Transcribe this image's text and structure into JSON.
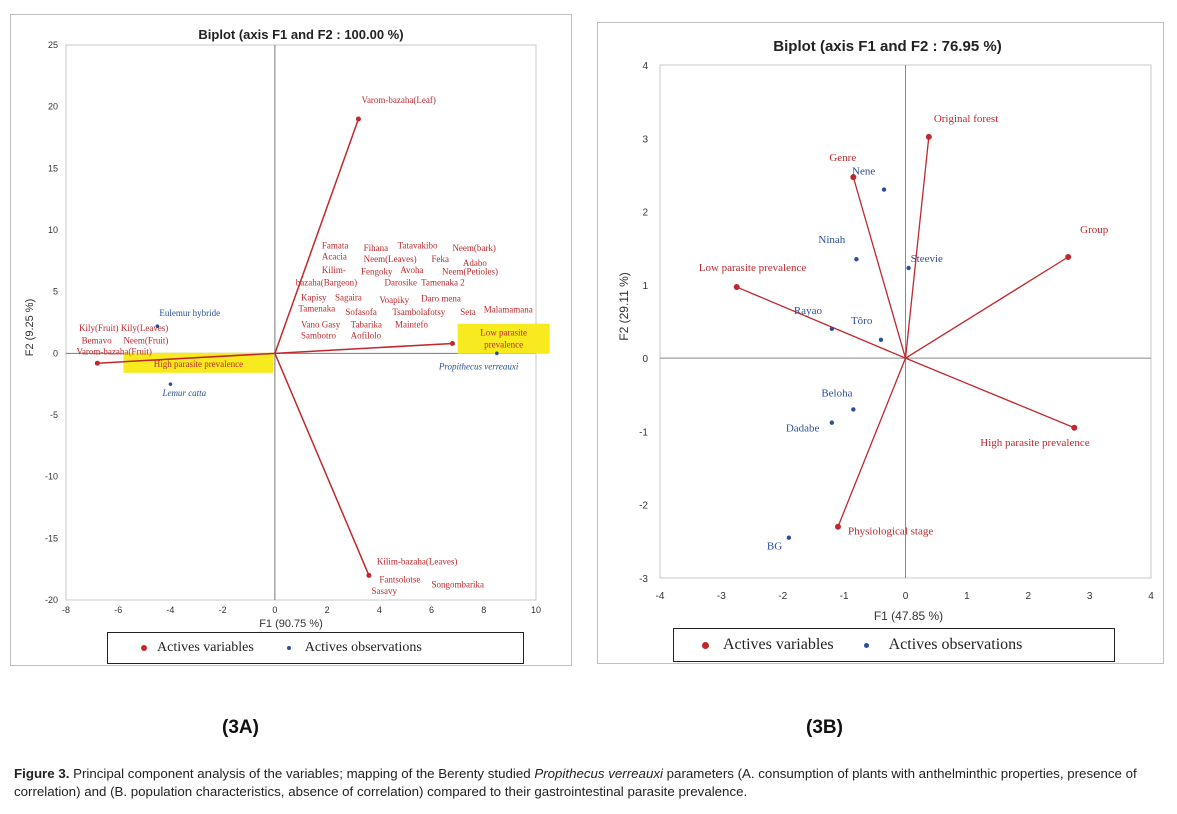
{
  "chart_data": [
    {
      "type": "scatter",
      "title": "Biplot (axis F1 and F2 : 100.00 %)",
      "xlabel": "F1 (90.75 %)",
      "ylabel": "F2 (9.25 %)",
      "xlim": [
        -8,
        10
      ],
      "ylim": [
        -20,
        25
      ],
      "xticks": [
        -8,
        -6,
        -4,
        -2,
        0,
        2,
        4,
        6,
        8,
        10
      ],
      "yticks": [
        -20,
        -15,
        -10,
        -5,
        0,
        5,
        10,
        15,
        20,
        25
      ],
      "legend": [
        "Actives variables",
        "Actives observations"
      ],
      "legend_position": "bottom",
      "grid": false,
      "active_variables": [
        {
          "label": "Varom-bazaha(Leaf)",
          "x": 3.2,
          "y": 19.0
        },
        {
          "label": "Kilim-bazaha(Leaves)",
          "x": 3.6,
          "y": -18.0
        },
        {
          "label": "Low parasite prevalence",
          "x": 6.8,
          "y": 0.8
        },
        {
          "label": "High parasite prevalence",
          "x": -6.8,
          "y": -0.8
        }
      ],
      "active_observations": [
        {
          "label": "Eulemur hybride",
          "x": -4.5,
          "y": 2.2
        },
        {
          "label": "Lemur catta",
          "x": -4.0,
          "y": -2.5
        },
        {
          "label": "Propithecus verreauxi",
          "x": 8.5,
          "y": 0.0
        }
      ],
      "plant_labels": [
        {
          "text": "Famata",
          "x": 1.8,
          "y": 8.5
        },
        {
          "text": "Fihana",
          "x": 3.4,
          "y": 8.3
        },
        {
          "text": "Tatavakibo",
          "x": 4.7,
          "y": 8.5
        },
        {
          "text": "Neem(bark)",
          "x": 6.8,
          "y": 8.3
        },
        {
          "text": "Acacia",
          "x": 1.8,
          "y": 7.6
        },
        {
          "text": "Neem(Leaves)",
          "x": 3.4,
          "y": 7.4
        },
        {
          "text": "Feka",
          "x": 6.0,
          "y": 7.4
        },
        {
          "text": "Adabo",
          "x": 7.2,
          "y": 7.1
        },
        {
          "text": "Kilim-",
          "x": 1.8,
          "y": 6.5
        },
        {
          "text": "Fengoky",
          "x": 3.3,
          "y": 6.4
        },
        {
          "text": "Avoha",
          "x": 4.8,
          "y": 6.5
        },
        {
          "text": "Neem(Petioles)",
          "x": 6.4,
          "y": 6.4
        },
        {
          "text": "bazaha(Bargeon)",
          "x": 0.8,
          "y": 5.5
        },
        {
          "text": "Darosike",
          "x": 4.2,
          "y": 5.5
        },
        {
          "text": "Tamenaka 2",
          "x": 5.6,
          "y": 5.5
        },
        {
          "text": "Kapisy",
          "x": 1.0,
          "y": 4.3
        },
        {
          "text": "Sagaira",
          "x": 2.3,
          "y": 4.3
        },
        {
          "text": "Voapiky",
          "x": 4.0,
          "y": 4.1
        },
        {
          "text": "Daro mena",
          "x": 5.6,
          "y": 4.2
        },
        {
          "text": "Tamenaka",
          "x": 0.9,
          "y": 3.4
        },
        {
          "text": "Sofasofa",
          "x": 2.7,
          "y": 3.1
        },
        {
          "text": "Tsambolafotsy",
          "x": 4.5,
          "y": 3.1
        },
        {
          "text": "Seta",
          "x": 7.1,
          "y": 3.1
        },
        {
          "text": "Malamamana",
          "x": 8.0,
          "y": 3.3
        },
        {
          "text": "Vano Gasy",
          "x": 1.0,
          "y": 2.1
        },
        {
          "text": "Tabarika",
          "x": 2.9,
          "y": 2.1
        },
        {
          "text": "Maintefo",
          "x": 4.6,
          "y": 2.1
        },
        {
          "text": "Sambotro",
          "x": 1.0,
          "y": 1.2
        },
        {
          "text": "Aofilolo",
          "x": 2.9,
          "y": 1.2
        },
        {
          "text": "Kily(Fruit)",
          "x": -7.5,
          "y": 1.8
        },
        {
          "text": "Kily(Leaves)",
          "x": -5.9,
          "y": 1.8
        },
        {
          "text": "Bemavo",
          "x": -7.4,
          "y": 0.8
        },
        {
          "text": "Neem(Fruit)",
          "x": -5.8,
          "y": 0.8
        },
        {
          "text": "Varom-bazaha(Fruit)",
          "x": -7.6,
          "y": -0.1
        },
        {
          "text": "Fantsolotse",
          "x": 4.0,
          "y": -18.6
        },
        {
          "text": "Songombarika",
          "x": 6.0,
          "y": -19.0
        },
        {
          "text": "Sasavy",
          "x": 3.7,
          "y": -19.5
        }
      ]
    },
    {
      "type": "scatter",
      "title": "Biplot (axis F1 and F2 : 76.95 %)",
      "xlabel": "F1 (47.85 %)",
      "ylabel": "F2 (29.11 %)",
      "xlim": [
        -4,
        4
      ],
      "ylim": [
        -3,
        4
      ],
      "xticks": [
        -4,
        -3,
        -2,
        -1,
        0,
        1,
        2,
        3,
        4
      ],
      "yticks": [
        -3,
        -2,
        -1,
        0,
        1,
        2,
        3,
        4
      ],
      "legend": [
        "Actives variables",
        "Actives observations"
      ],
      "legend_position": "bottom",
      "grid": false,
      "active_variables": [
        {
          "label": "Original forest",
          "x": 0.38,
          "y": 3.02
        },
        {
          "label": "Genre",
          "x": -0.85,
          "y": 2.47
        },
        {
          "label": "Group",
          "x": 2.65,
          "y": 1.38
        },
        {
          "label": "Low parasite prevalence",
          "x": -2.75,
          "y": 0.97
        },
        {
          "label": "High parasite prevalence",
          "x": 2.75,
          "y": -0.95
        },
        {
          "label": "Physiological stage",
          "x": -1.1,
          "y": -2.3
        }
      ],
      "active_observations": [
        {
          "label": "Nene",
          "x": -0.35,
          "y": 2.3
        },
        {
          "label": "Ninah",
          "x": -0.8,
          "y": 1.35
        },
        {
          "label": "Steevie",
          "x": 0.05,
          "y": 1.23
        },
        {
          "label": "Rayao",
          "x": -1.2,
          "y": 0.4
        },
        {
          "label": "Tôro",
          "x": -0.4,
          "y": 0.25
        },
        {
          "label": "Beloha",
          "x": -0.85,
          "y": -0.7
        },
        {
          "label": "Dadabe",
          "x": -1.2,
          "y": -0.88
        },
        {
          "label": "BG",
          "x": -1.9,
          "y": -2.45
        }
      ]
    }
  ],
  "sublabels": {
    "a": "(3A)",
    "b": "(3B)"
  },
  "caption": {
    "prefix": "Figure 3.",
    "part1": " Principal component analysis of the variables; mapping of the Berenty studied ",
    "species": "Propithecus verreauxi",
    "part2": " parameters (A. consumption of plants with anthelminthic properties, presence of correlation) and (B. population characteristics, absence of correlation) compared to their gastrointestinal parasite prevalence."
  },
  "colors": {
    "variable": "#c0282d",
    "observation": "#2b4f9a",
    "axis": "#777777",
    "highlight": "#f7ea1e"
  }
}
